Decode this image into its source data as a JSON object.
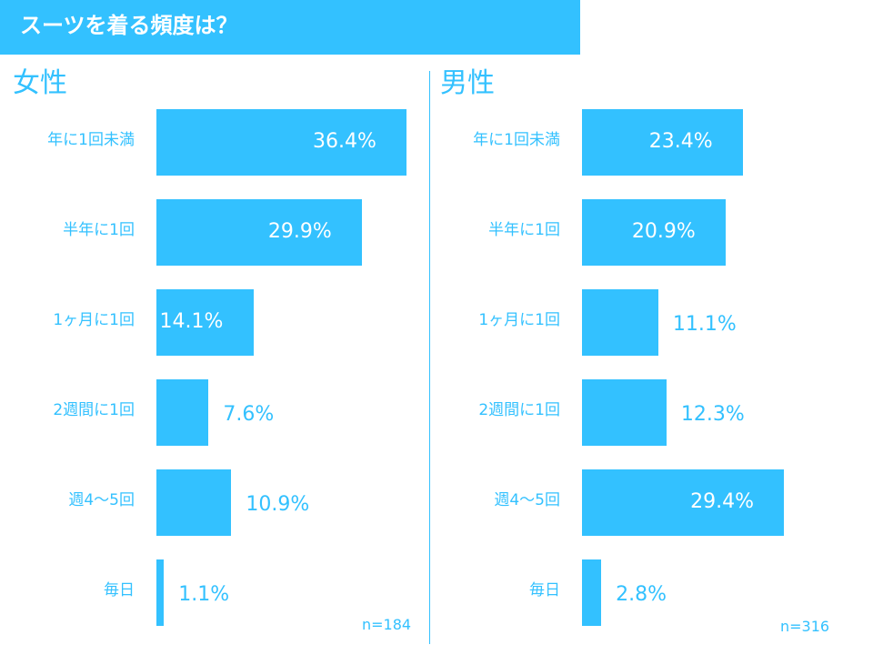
{
  "header": {
    "title": "スーツを着る頻度は？"
  },
  "colors": {
    "accent": "#33c1ff",
    "bar_text_inside": "#ffffff"
  },
  "chart_data": [
    {
      "type": "bar",
      "orientation": "horizontal",
      "title": "女性",
      "categories": [
        "年に1回未満",
        "半年に1回",
        "1ヶ月に1回",
        "2週間に1回",
        "週4～5回",
        "毎日"
      ],
      "values": [
        36.4,
        29.9,
        14.1,
        7.6,
        10.9,
        1.1
      ],
      "value_labels": [
        "36.4%",
        "29.9%",
        "14.1%",
        "7.6%",
        "10.9%",
        "1.1%"
      ],
      "unit": "%",
      "sample_size": "n=184",
      "grid": false,
      "legend": "none"
    },
    {
      "type": "bar",
      "orientation": "horizontal",
      "title": "男性",
      "categories": [
        "年に1回未満",
        "半年に1回",
        "1ヶ月に1回",
        "2週間に1回",
        "週4～5回",
        "毎日"
      ],
      "values": [
        23.4,
        20.9,
        11.1,
        12.3,
        29.4,
        2.8
      ],
      "value_labels": [
        "23.4%",
        "20.9%",
        "11.1%",
        "12.3%",
        "29.4%",
        "2.8%"
      ],
      "unit": "%",
      "sample_size": "n=316",
      "grid": false,
      "legend": "none"
    }
  ]
}
